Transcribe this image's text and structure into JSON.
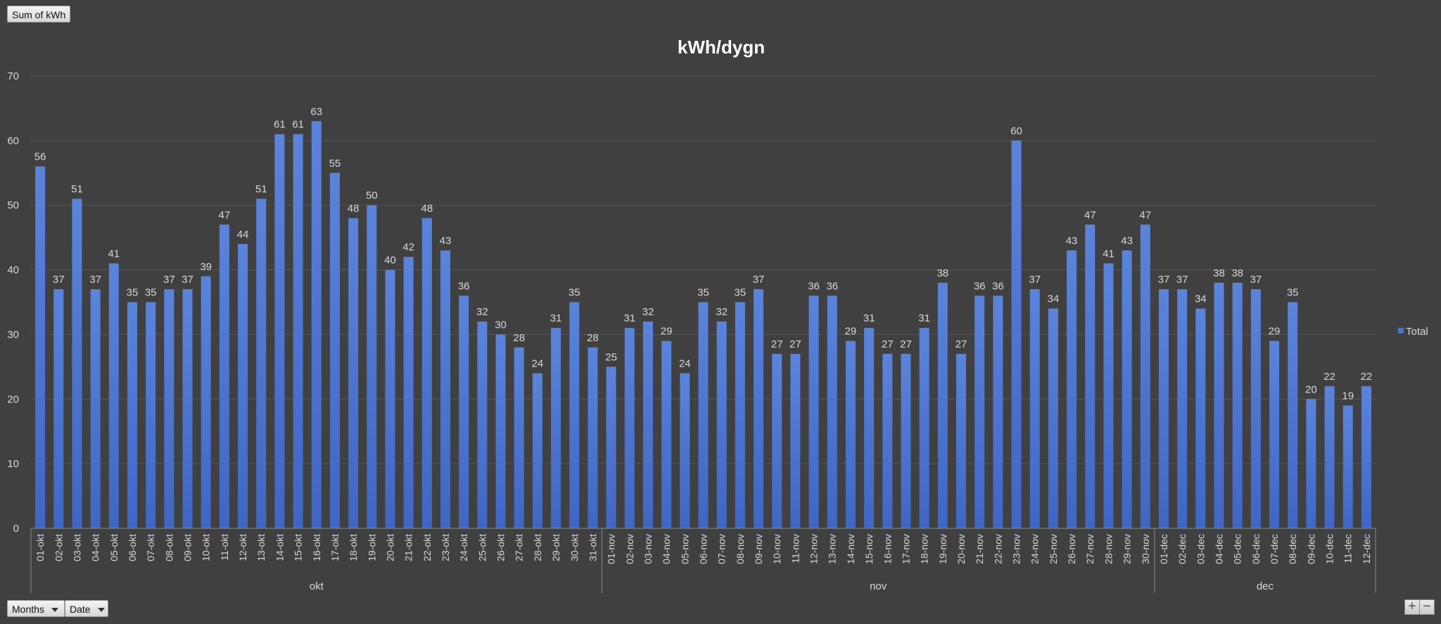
{
  "field_buttons": {
    "value_field": "Sum of kWh",
    "row_field_months": "Months",
    "row_field_date": "Date"
  },
  "zoom": {
    "plus": "+",
    "minus": "−"
  },
  "colors": {
    "background": "#404040",
    "bar": "#4a74cf",
    "grid": "#575757",
    "text": "#d8d8d8",
    "title": "#ffffff"
  },
  "chart_data": {
    "type": "bar",
    "title": "kWh/dygn",
    "ylim": [
      0,
      70
    ],
    "yticks": [
      0,
      10,
      20,
      30,
      40,
      50,
      60,
      70
    ],
    "grid": true,
    "legend_position": "right",
    "series": [
      {
        "name": "Total",
        "values": [
          56,
          37,
          51,
          37,
          41,
          35,
          35,
          37,
          37,
          39,
          47,
          44,
          51,
          61,
          61,
          63,
          55,
          48,
          50,
          40,
          42,
          48,
          43,
          36,
          32,
          30,
          28,
          24,
          31,
          35,
          28,
          25,
          31,
          32,
          29,
          24,
          35,
          32,
          35,
          37,
          27,
          27,
          36,
          36,
          29,
          31,
          27,
          27,
          31,
          38,
          27,
          36,
          36,
          60,
          37,
          34,
          43,
          47,
          41,
          43,
          47,
          37,
          37,
          34,
          38,
          38,
          37,
          29,
          35,
          20,
          22,
          19,
          22
        ]
      }
    ],
    "categories": [
      "01-okt",
      "02-okt",
      "03-okt",
      "04-okt",
      "05-okt",
      "06-okt",
      "07-okt",
      "08-okt",
      "09-okt",
      "10-okt",
      "11-okt",
      "12-okt",
      "13-okt",
      "14-okt",
      "15-okt",
      "16-okt",
      "17-okt",
      "18-okt",
      "19-okt",
      "20-okt",
      "21-okt",
      "22-okt",
      "23-okt",
      "24-okt",
      "25-okt",
      "26-okt",
      "27-okt",
      "28-okt",
      "29-okt",
      "30-okt",
      "31-okt",
      "01-nov",
      "02-nov",
      "03-nov",
      "04-nov",
      "05-nov",
      "06-nov",
      "07-nov",
      "08-nov",
      "09-nov",
      "10-nov",
      "11-nov",
      "12-nov",
      "13-nov",
      "14-nov",
      "15-nov",
      "16-nov",
      "17-nov",
      "18-nov",
      "19-nov",
      "20-nov",
      "21-nov",
      "22-nov",
      "23-nov",
      "24-nov",
      "25-nov",
      "26-nov",
      "27-nov",
      "28-nov",
      "29-nov",
      "30-nov",
      "01-dec",
      "02-dec",
      "03-dec",
      "04-dec",
      "05-dec",
      "06-dec",
      "07-dec",
      "08-dec",
      "09-dec",
      "10-dec",
      "11-dec",
      "12-dec"
    ],
    "groups": [
      {
        "name": "okt",
        "count": 31
      },
      {
        "name": "nov",
        "count": 30
      },
      {
        "name": "dec",
        "count": 12
      }
    ]
  }
}
